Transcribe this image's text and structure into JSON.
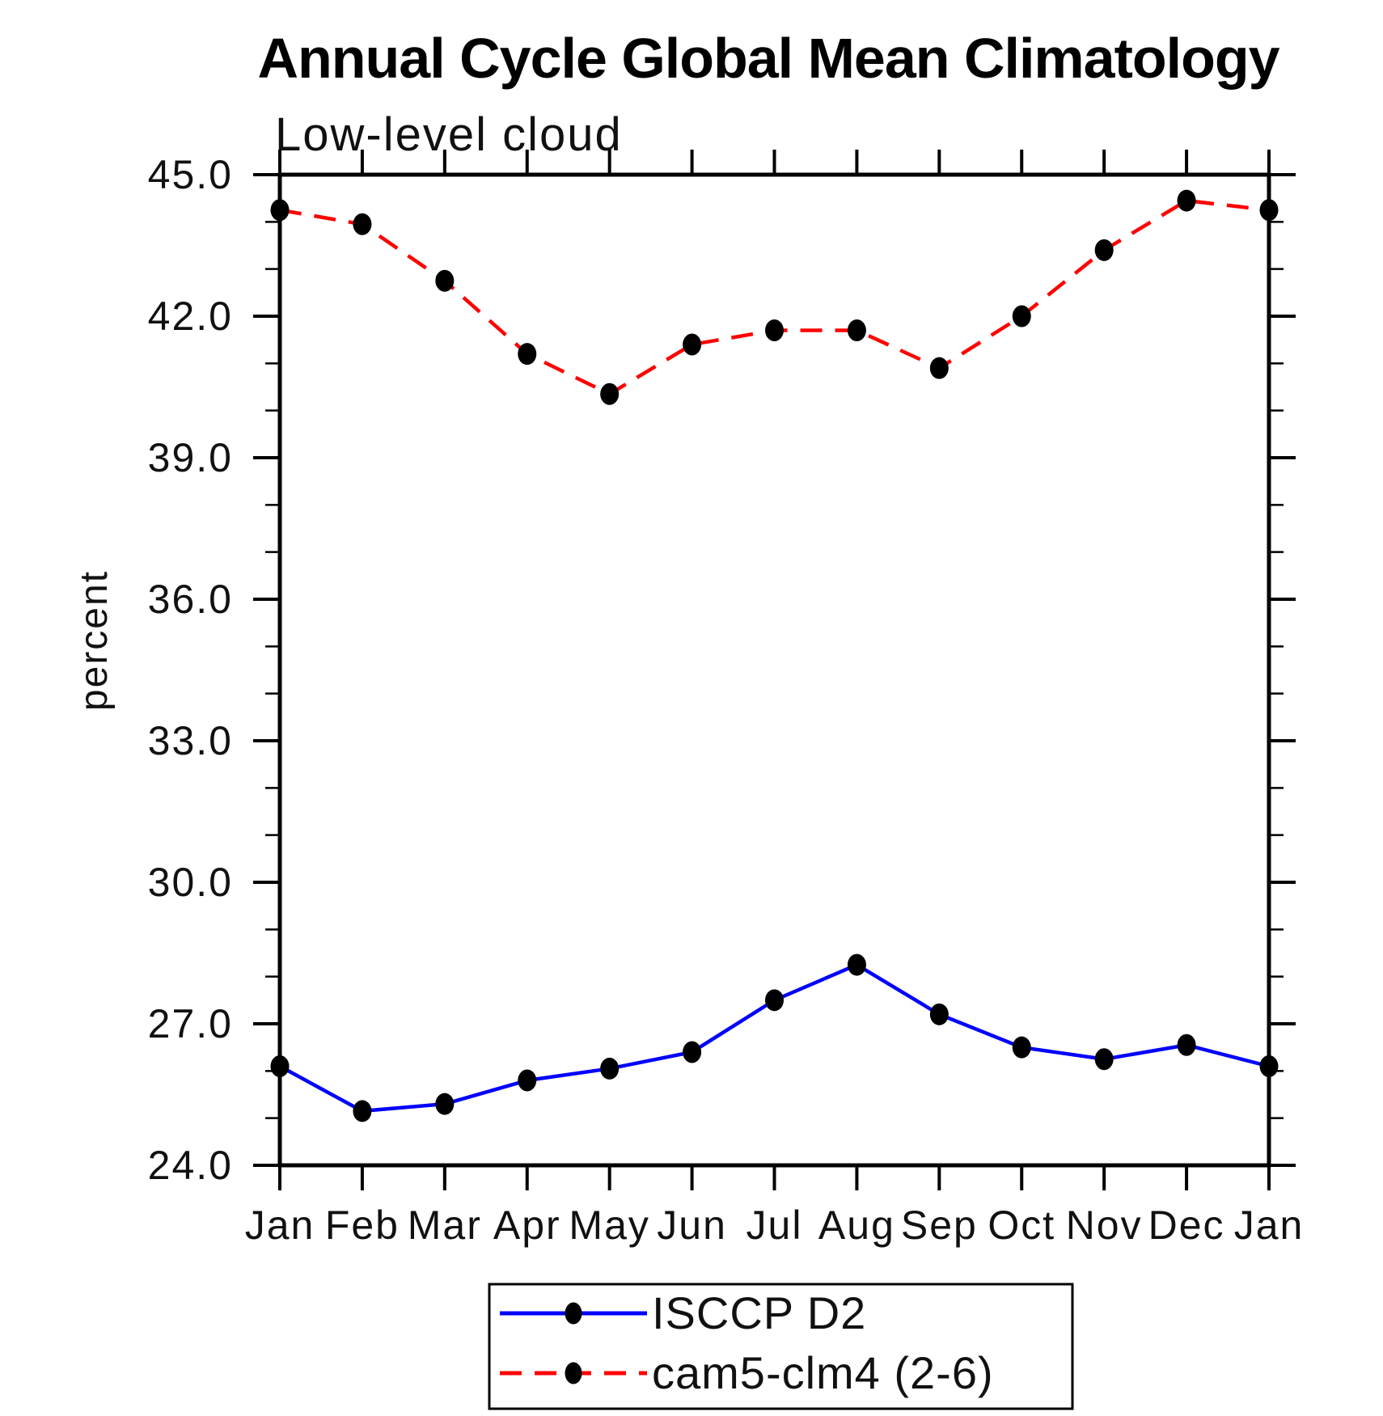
{
  "page": {
    "background": "#ffffff"
  },
  "chart_data": {
    "type": "line",
    "title": "Annual Cycle Global Mean Climatology",
    "subtitle": "Low-level cloud",
    "xlabel": "",
    "ylabel": "percent",
    "categories": [
      "Jan",
      "Feb",
      "Mar",
      "Apr",
      "May",
      "Jun",
      "Jul",
      "Aug",
      "Sep",
      "Oct",
      "Nov",
      "Dec",
      "Jan"
    ],
    "series": [
      {
        "name": "ISCCP D2",
        "color": "#0000ff",
        "line_style": "solid",
        "marker": "filled-circle",
        "marker_color": "#000000",
        "values": [
          26.1,
          25.15,
          25.3,
          25.8,
          26.05,
          26.4,
          27.5,
          28.25,
          27.2,
          26.5,
          26.25,
          26.55,
          26.1
        ]
      },
      {
        "name": "cam5-clm4 (2-6)",
        "color": "#ff0000",
        "line_style": "dashed",
        "marker": "filled-circle",
        "marker_color": "#000000",
        "values": [
          44.25,
          43.95,
          42.75,
          41.2,
          40.35,
          41.4,
          41.7,
          41.7,
          40.9,
          42.0,
          43.4,
          44.45,
          44.25
        ]
      }
    ],
    "ylim": [
      24.0,
      45.0
    ],
    "ytick_major_step": 3.0,
    "ytick_minor_step": 1.0,
    "ytick_labels": [
      "24.0",
      "27.0",
      "30.0",
      "33.0",
      "36.0",
      "39.0",
      "42.0",
      "45.0"
    ],
    "grid": false,
    "legend_position": "bottom-center",
    "axis_color": "#000000"
  }
}
